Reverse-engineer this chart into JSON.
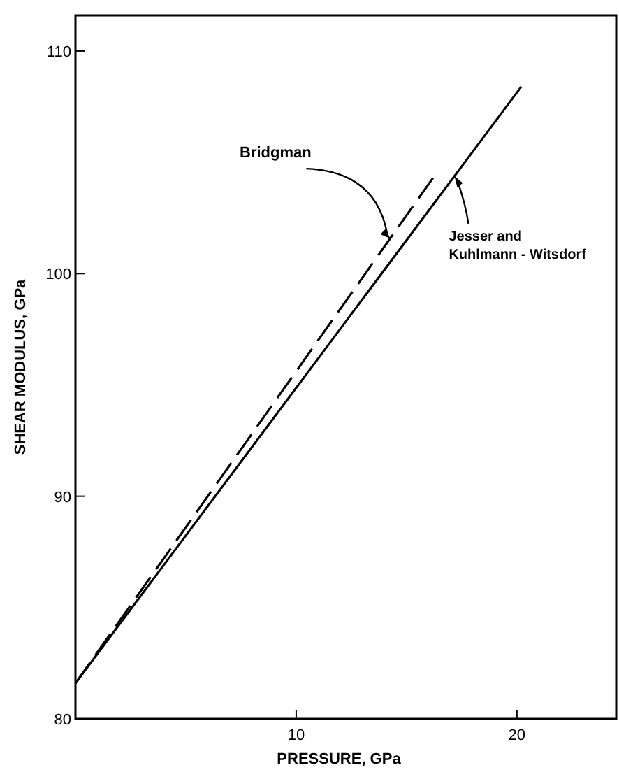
{
  "chart_data": {
    "type": "line",
    "xlabel": "PRESSURE, GPa",
    "ylabel": "SHEAR MODULUS, GPa",
    "xlim": [
      0,
      24.5
    ],
    "xticks": [
      10,
      20
    ],
    "ylim": [
      80,
      111.6
    ],
    "yticks": [
      80,
      90,
      100,
      110
    ],
    "series": [
      {
        "name": "Bridgman",
        "color": "#000000",
        "line_style": "dashed",
        "x": [
          0,
          16.2
        ],
        "values": [
          81.6,
          104.3
        ]
      },
      {
        "name": "Jesser and Kuhlmann - Witsdorf",
        "color": "#000000",
        "line_style": "solid",
        "x": [
          0,
          20.2
        ],
        "values": [
          81.6,
          108.4
        ]
      }
    ]
  }
}
